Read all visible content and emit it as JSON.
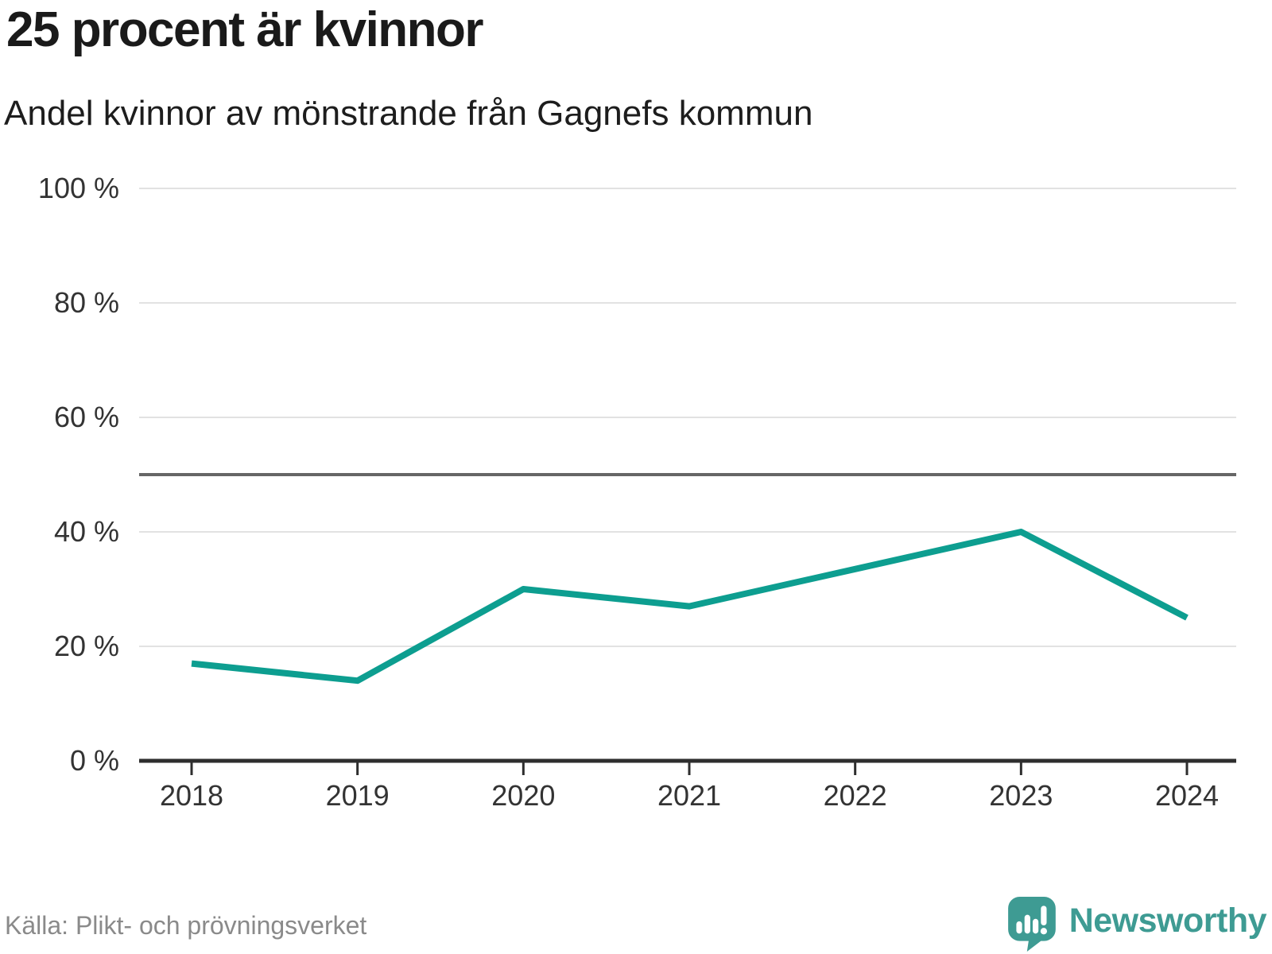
{
  "header": {
    "title": "25 procent är kvinnor",
    "subtitle": "Andel kvinnor av mönstrande från Gagnefs kommun"
  },
  "footer": {
    "source": "Källa: Plikt- och prövningsverket",
    "brand": "Newsworthy",
    "brand_icon": "newsworthy-speech-bubble-bar-chart-icon"
  },
  "colors": {
    "line": "#0D9E90",
    "reference_line": "#666666",
    "gridline": "#E2E2E2",
    "axis": "#2E2E2E",
    "tick_text": "#333333",
    "title_text": "#1A1A1A",
    "muted_text": "#8A8A8A",
    "brand_teal": "#3E9B93"
  },
  "chart_data": {
    "type": "line",
    "title": "25 procent är kvinnor",
    "subtitle": "Andel kvinnor av mönstrande från Gagnefs kommun",
    "x": [
      2018,
      2019,
      2020,
      2021,
      2022,
      2023,
      2024
    ],
    "series": [
      {
        "name": "Andel kvinnor av mönstrande, Gagnefs kommun",
        "values": [
          17,
          14,
          30,
          27,
          33.5,
          40,
          25
        ]
      }
    ],
    "xlabel": "",
    "ylabel": "",
    "ylim": [
      0,
      100
    ],
    "yticks": [
      0,
      20,
      40,
      60,
      80,
      100
    ],
    "ytick_suffix": " %",
    "reference_line_y": 50,
    "grid": true,
    "legend": false
  }
}
